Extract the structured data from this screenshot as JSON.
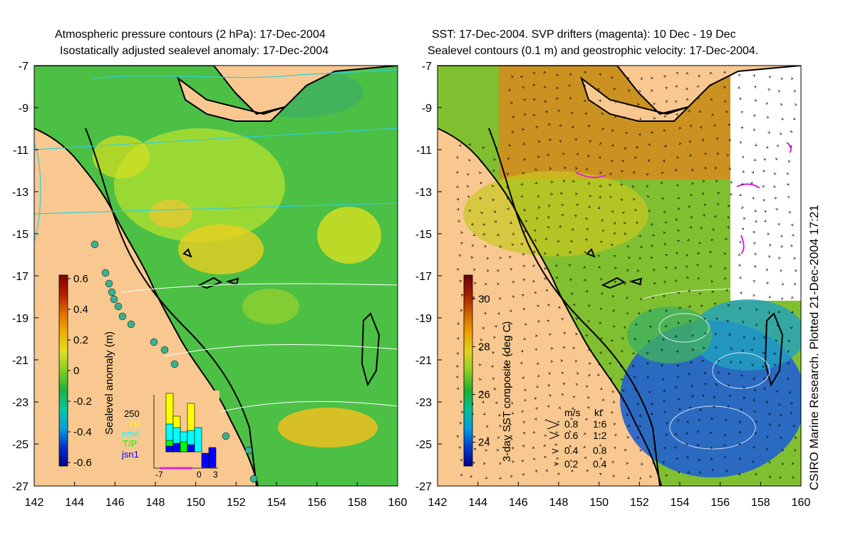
{
  "left_panel": {
    "title_line1": "Atmospheric pressure contours (2 hPa): 17-Dec-2004",
    "title_line2": "Isostatically adjusted sealevel anomaly: 17-Dec-2004",
    "colorbar": {
      "label": "Sealevel anomaly (m)",
      "ticks": [
        "0.6",
        "0.4",
        "0.2",
        "0",
        "-0.2",
        "-0.4",
        "-0.6"
      ],
      "colors": [
        "#00008b",
        "#0033cc",
        "#00a0e0",
        "#00c8a0",
        "#20b040",
        "#80d020",
        "#e0e020",
        "#f0b000",
        "#e07000",
        "#b02000",
        "#800000"
      ]
    },
    "inset": {
      "top_label": "250",
      "legend": [
        "TP",
        "envi",
        "T/P",
        "jsn1"
      ],
      "legend_colors": [
        "#ffff00",
        "#00ffff",
        "#00ff00",
        "#0000ff"
      ],
      "x_ticks": [
        "-7",
        "0",
        "3"
      ]
    }
  },
  "right_panel": {
    "title_line1": "SST: 17-Dec-2004. SVP drifters (magenta): 10 Dec - 19 Dec",
    "title_line2": "Sealevel contours (0.1 m) and geostrophic velocity: 17-Dec-2004.",
    "colorbar": {
      "label": "3-day SST composite (deg C)",
      "ticks": [
        "30",
        "28",
        "26",
        "24"
      ],
      "colors": [
        "#00008b",
        "#0040d0",
        "#00a0e0",
        "#00c090",
        "#20b030",
        "#90d020",
        "#e0d020",
        "#f0a000",
        "#d06000",
        "#a02000",
        "#700000"
      ]
    },
    "velocity_legend": {
      "header_ms": "m/s",
      "header_kt": "kt",
      "rows": [
        {
          "ms": "0.8",
          "kt": "1.6"
        },
        {
          "ms": "0.6",
          "kt": "1.2"
        },
        {
          "ms": "0.4",
          "kt": "0.8"
        },
        {
          "ms": "0.2",
          "kt": "0.4"
        }
      ]
    }
  },
  "credit": "CSIRO Marine Research. Plotted 21-Dec-2004 17:21",
  "chart_data": [
    {
      "type": "heatmap",
      "title": "Atmospheric pressure contours (2 hPa): 17-Dec-2004 / Isostatically adjusted sealevel anomaly: 17-Dec-2004",
      "xlim": [
        142,
        160
      ],
      "ylim": [
        -27,
        -7
      ],
      "x_ticks": [
        "142",
        "144",
        "146",
        "148",
        "150",
        "152",
        "154",
        "156",
        "158",
        "160"
      ],
      "y_ticks": [
        "-7",
        "-9",
        "-11",
        "-13",
        "-15",
        "-17",
        "-19",
        "-21",
        "-23",
        "-25",
        "-27"
      ],
      "colorbar_range": [
        -0.6,
        0.6
      ],
      "colorbar_label": "Sealevel anomaly (m)"
    },
    {
      "type": "heatmap",
      "title": "SST: 17-Dec-2004. SVP drifters (magenta): 10 Dec - 19 Dec / Sealevel contours (0.1 m) and geostrophic velocity: 17-Dec-2004.",
      "xlim": [
        142,
        160
      ],
      "ylim": [
        -27,
        -7
      ],
      "x_ticks": [
        "142",
        "144",
        "146",
        "148",
        "150",
        "152",
        "154",
        "156",
        "158",
        "160"
      ],
      "y_ticks": [
        "-7",
        "-9",
        "-11",
        "-13",
        "-15",
        "-17",
        "-19",
        "-21",
        "-23",
        "-25",
        "-27"
      ],
      "colorbar_range": [
        23,
        31
      ],
      "colorbar_label": "3-day SST composite (deg C)"
    }
  ],
  "colors": {
    "land": "#f8c890",
    "ocean_left": "#50c040",
    "coast": "#000000"
  }
}
